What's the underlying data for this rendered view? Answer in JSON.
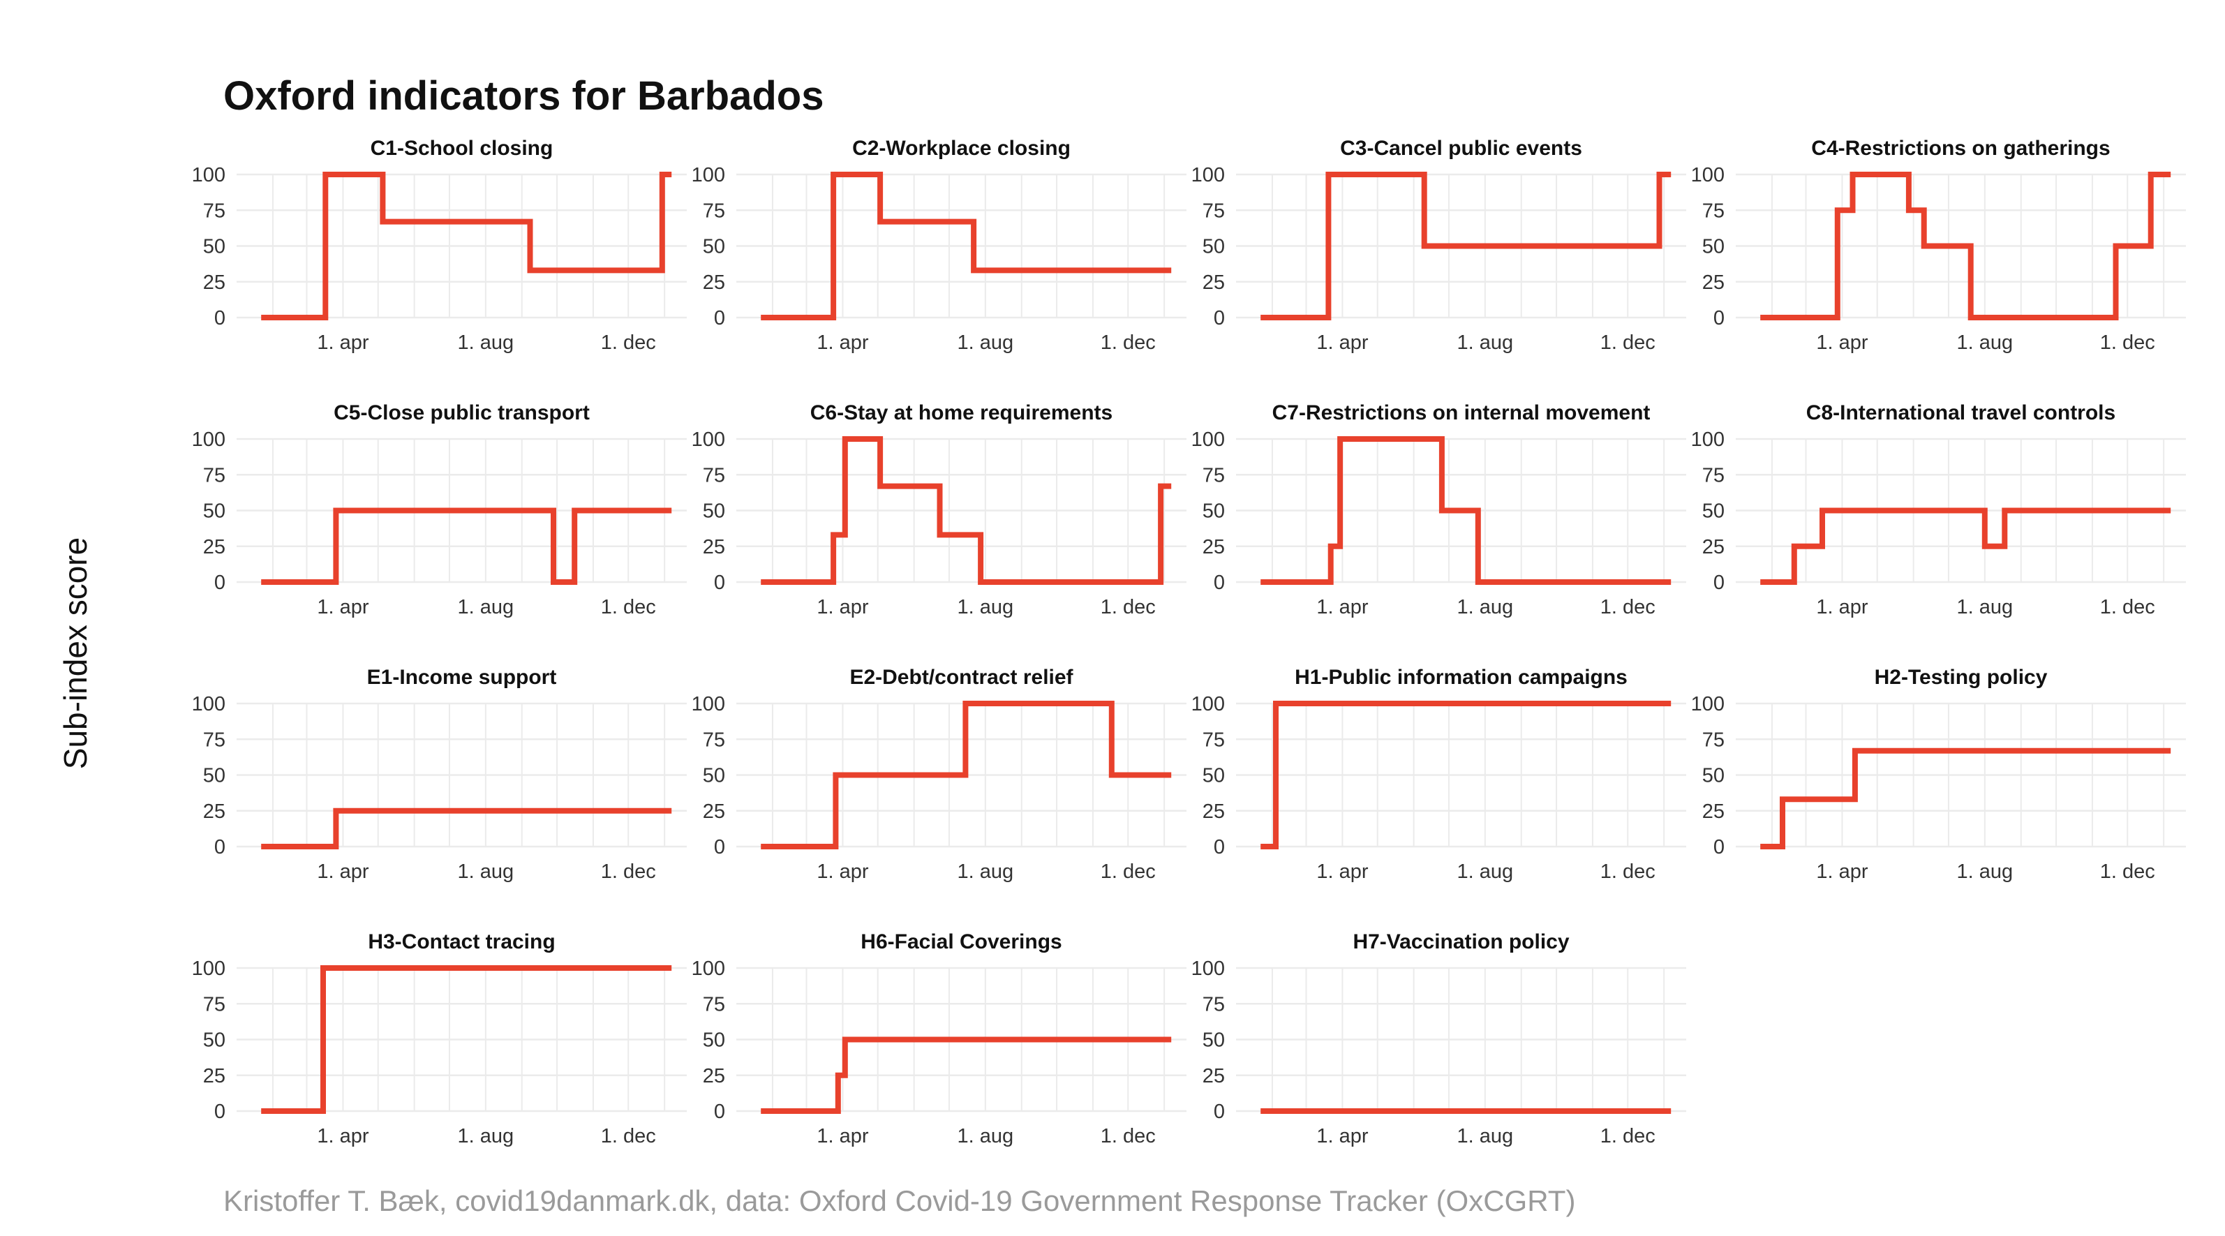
{
  "title": "Oxford indicators for Barbados",
  "ylabel": "Sub-index score",
  "caption": "Kristoffer T. Bæk, covid19danmark.dk, data: Oxford Covid-19 Government Response Tracker (OxCGRT)",
  "colors": {
    "line": "#e8412c",
    "grid": "#ebebeb",
    "text": "#333333"
  },
  "chart_data": {
    "type": "line",
    "layout": "facets",
    "x_type": "date",
    "xlim": [
      "2020-01-01",
      "2021-01-20"
    ],
    "ylim": [
      0,
      100
    ],
    "yticks": [
      0,
      25,
      50,
      75,
      100
    ],
    "xticks": [
      {
        "date": "2020-04-01",
        "label": "1. apr"
      },
      {
        "date": "2020-08-01",
        "label": "1. aug"
      },
      {
        "date": "2020-12-01",
        "label": "1. dec"
      }
    ],
    "grid": true,
    "interpolation": "step",
    "panels": [
      {
        "name": "C1-School closing",
        "points": [
          [
            "2020-01-22",
            0
          ],
          [
            "2020-03-17",
            100
          ],
          [
            "2020-05-05",
            67
          ],
          [
            "2020-09-08",
            33
          ],
          [
            "2020-12-30",
            100
          ],
          [
            "2021-01-07",
            100
          ]
        ]
      },
      {
        "name": "C2-Workplace closing",
        "points": [
          [
            "2020-01-22",
            0
          ],
          [
            "2020-03-24",
            100
          ],
          [
            "2020-05-03",
            67
          ],
          [
            "2020-07-22",
            33
          ],
          [
            "2021-01-07",
            33
          ]
        ]
      },
      {
        "name": "C3-Cancel public events",
        "points": [
          [
            "2020-01-22",
            0
          ],
          [
            "2020-03-20",
            100
          ],
          [
            "2020-06-10",
            50
          ],
          [
            "2020-12-28",
            100
          ],
          [
            "2021-01-07",
            100
          ]
        ]
      },
      {
        "name": "C4-Restrictions on gatherings",
        "points": [
          [
            "2020-01-22",
            0
          ],
          [
            "2020-03-28",
            75
          ],
          [
            "2020-04-10",
            100
          ],
          [
            "2020-05-28",
            75
          ],
          [
            "2020-06-10",
            50
          ],
          [
            "2020-07-20",
            0
          ],
          [
            "2020-11-21",
            50
          ],
          [
            "2020-12-21",
            100
          ],
          [
            "2021-01-07",
            100
          ]
        ]
      },
      {
        "name": "C5-Close public transport",
        "points": [
          [
            "2020-01-22",
            0
          ],
          [
            "2020-03-26",
            50
          ],
          [
            "2020-09-28",
            0
          ],
          [
            "2020-10-16",
            50
          ],
          [
            "2021-01-07",
            50
          ]
        ]
      },
      {
        "name": "C6-Stay at home requirements",
        "points": [
          [
            "2020-01-22",
            0
          ],
          [
            "2020-03-24",
            33
          ],
          [
            "2020-04-03",
            100
          ],
          [
            "2020-05-03",
            67
          ],
          [
            "2020-06-23",
            33
          ],
          [
            "2020-07-28",
            0
          ],
          [
            "2020-12-29",
            67
          ],
          [
            "2021-01-07",
            67
          ]
        ]
      },
      {
        "name": "C7-Restrictions on internal movement",
        "points": [
          [
            "2020-01-22",
            0
          ],
          [
            "2020-03-22",
            25
          ],
          [
            "2020-03-30",
            100
          ],
          [
            "2020-06-25",
            50
          ],
          [
            "2020-07-26",
            0
          ],
          [
            "2021-01-07",
            0
          ]
        ]
      },
      {
        "name": "C8-International travel controls",
        "points": [
          [
            "2020-01-22",
            0
          ],
          [
            "2020-02-20",
            25
          ],
          [
            "2020-03-15",
            50
          ],
          [
            "2020-08-01",
            25
          ],
          [
            "2020-08-18",
            50
          ],
          [
            "2021-01-07",
            50
          ]
        ]
      },
      {
        "name": "E1-Income support",
        "points": [
          [
            "2020-01-22",
            0
          ],
          [
            "2020-03-26",
            25
          ],
          [
            "2021-01-07",
            25
          ]
        ]
      },
      {
        "name": "E2-Debt/contract relief",
        "points": [
          [
            "2020-01-22",
            0
          ],
          [
            "2020-03-26",
            50
          ],
          [
            "2020-07-15",
            100
          ],
          [
            "2020-11-17",
            50
          ],
          [
            "2021-01-07",
            50
          ]
        ]
      },
      {
        "name": "H1-Public information campaigns",
        "points": [
          [
            "2020-01-22",
            0
          ],
          [
            "2020-02-04",
            100
          ],
          [
            "2021-01-07",
            100
          ]
        ]
      },
      {
        "name": "H2-Testing policy",
        "points": [
          [
            "2020-01-22",
            0
          ],
          [
            "2020-02-10",
            33
          ],
          [
            "2020-04-12",
            67
          ],
          [
            "2021-01-07",
            67
          ]
        ]
      },
      {
        "name": "H3-Contact tracing",
        "points": [
          [
            "2020-01-22",
            0
          ],
          [
            "2020-03-15",
            100
          ],
          [
            "2021-01-07",
            100
          ]
        ]
      },
      {
        "name": "H6-Facial Coverings",
        "points": [
          [
            "2020-01-22",
            0
          ],
          [
            "2020-03-28",
            25
          ],
          [
            "2020-04-03",
            50
          ],
          [
            "2021-01-07",
            50
          ]
        ]
      },
      {
        "name": "H7-Vaccination policy",
        "points": [
          [
            "2020-01-22",
            0
          ],
          [
            "2021-01-07",
            0
          ]
        ]
      }
    ]
  }
}
